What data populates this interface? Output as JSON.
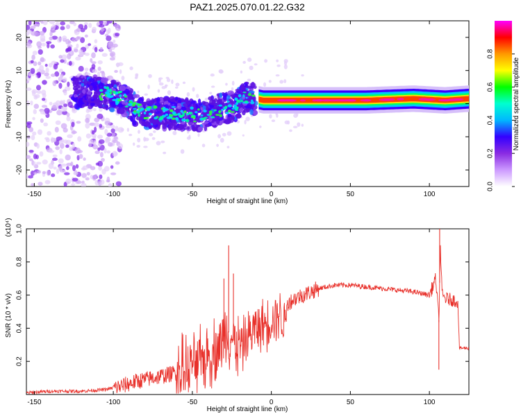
{
  "title": "PAZ1.2025.070.01.22.G32",
  "chart_data": [
    {
      "type": "heatmap",
      "xlabel": "Height of straight line (km)",
      "ylabel": "Frequency (Hz)",
      "xlim": [
        -155,
        125
      ],
      "ylim": [
        -25,
        25
      ],
      "x_ticks": [
        -150,
        -100,
        -50,
        0,
        50,
        100
      ],
      "y_ticks": [
        -20,
        -10,
        0,
        10,
        20
      ],
      "colorbar": {
        "label": "Normalized spectral amplitude",
        "range": [
          0,
          1
        ],
        "ticks": [
          0.0,
          0.2,
          0.4,
          0.6,
          0.8
        ],
        "colors": [
          "#ffffff",
          "#cc99ff",
          "#8a2be2",
          "#3300ff",
          "#00b7ff",
          "#00ffd0",
          "#00ff00",
          "#ffff00",
          "#ff9900",
          "#ff0000",
          "#ff00ff"
        ]
      },
      "ridge": [
        {
          "x": -120,
          "f": 3.5
        },
        {
          "x": -105,
          "f": 3
        },
        {
          "x": -95,
          "f": 1.5
        },
        {
          "x": -85,
          "f": -2
        },
        {
          "x": -75,
          "f": -3
        },
        {
          "x": -60,
          "f": -3
        },
        {
          "x": -45,
          "f": -3.5
        },
        {
          "x": -35,
          "f": -2
        },
        {
          "x": -25,
          "f": -1
        },
        {
          "x": -15,
          "f": 2
        },
        {
          "x": -5,
          "f": 1
        },
        {
          "x": 5,
          "f": 1
        },
        {
          "x": 30,
          "f": 1
        },
        {
          "x": 60,
          "f": 1
        },
        {
          "x": 90,
          "f": 1.5
        },
        {
          "x": 110,
          "f": 1
        },
        {
          "x": 125,
          "f": 1.5
        }
      ]
    },
    {
      "type": "line",
      "xlabel": "Height of straight line (km)",
      "ylabel": "SNR (10 * v/v)",
      "y_multiplier": "(x10⁴)",
      "xlim": [
        -155,
        125
      ],
      "ylim": [
        0,
        1.0
      ],
      "x_ticks": [
        -150,
        -100,
        -50,
        0,
        50,
        100
      ],
      "y_ticks": [
        0.2,
        0.4,
        0.6,
        0.8,
        1.0
      ],
      "line_color": "#e8302a",
      "series": [
        {
          "x": [
            -155,
            -140,
            -120,
            -105,
            -95,
            -85,
            -75,
            -65,
            -55,
            -45,
            -38,
            -32,
            -28,
            -26,
            -22,
            -18,
            -15,
            -10,
            -5,
            0,
            5,
            8,
            10,
            15,
            20,
            25,
            30,
            35,
            40,
            50,
            60,
            70,
            80,
            90,
            100,
            104,
            106,
            107,
            108,
            110,
            115,
            118,
            119,
            125
          ],
          "y": [
            0.01,
            0.02,
            0.02,
            0.03,
            0.05,
            0.08,
            0.1,
            0.12,
            0.15,
            0.2,
            0.25,
            0.3,
            0.4,
            0.35,
            0.3,
            0.3,
            0.35,
            0.4,
            0.42,
            0.45,
            0.5,
            0.42,
            0.55,
            0.58,
            0.6,
            0.62,
            0.64,
            0.65,
            0.66,
            0.66,
            0.65,
            0.64,
            0.63,
            0.62,
            0.6,
            0.7,
            0.45,
            0.9,
            0.6,
            0.58,
            0.57,
            0.56,
            0.28,
            0.28
          ]
        }
      ],
      "spikes": [
        {
          "x": -27,
          "y": 0.9
        },
        {
          "x": -24,
          "y": 0.73
        },
        {
          "x": -30,
          "y": 0.7
        },
        {
          "x": 106.5,
          "y": 1.0
        },
        {
          "x": 106,
          "y": 0.15
        }
      ]
    }
  ]
}
